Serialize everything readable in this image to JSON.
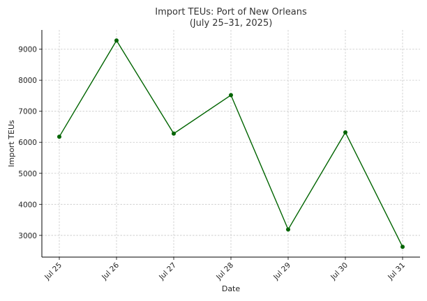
{
  "chart_data": {
    "type": "line",
    "title": "Import TEUs: Port of New Orleans",
    "subtitle": "(July 25–31, 2025)",
    "xlabel": "Date",
    "ylabel": "Import TEUs",
    "categories": [
      "Jul 25",
      "Jul 26",
      "Jul 27",
      "Jul 28",
      "Jul 29",
      "Jul 30",
      "Jul 31"
    ],
    "series": [
      {
        "values": [
          6180,
          9280,
          6280,
          7520,
          3190,
          6320,
          2630
        ],
        "color": "#006400"
      }
    ],
    "ylim": [
      2300,
      9620
    ],
    "yticks": [
      3000,
      4000,
      5000,
      6000,
      7000,
      8000,
      9000
    ],
    "grid": true,
    "legend": "none"
  }
}
